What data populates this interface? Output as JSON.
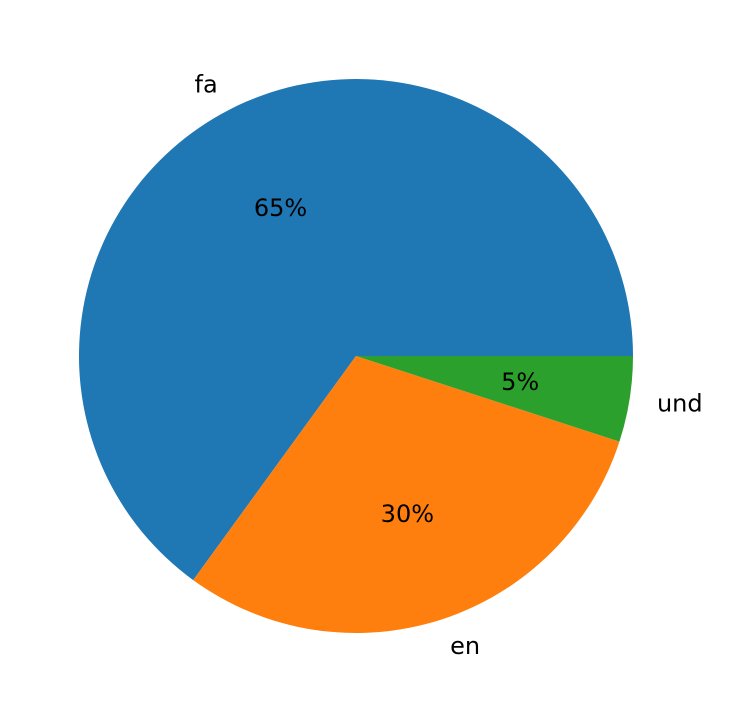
{
  "chart_data": {
    "type": "pie",
    "title": "",
    "categories": [
      "fa",
      "en",
      "und"
    ],
    "values": [
      65,
      30,
      5
    ],
    "pct_labels": [
      "65%",
      "30%",
      "5%"
    ],
    "colors": [
      "#1f77b4",
      "#ff7f0e",
      "#2ca02c"
    ],
    "start_angle_deg": 0,
    "direction": "counterclockwise"
  }
}
